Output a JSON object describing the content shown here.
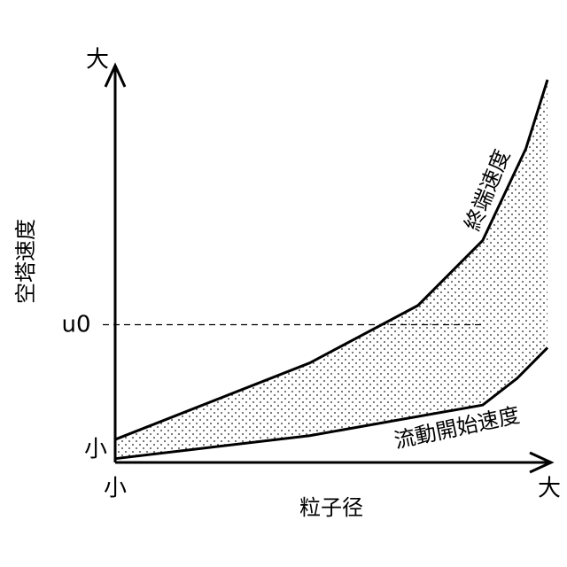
{
  "chart_data": {
    "type": "area",
    "xlabel": "粒子径",
    "ylabel": "空塔速度",
    "x_min_label": "小",
    "x_max_label": "大",
    "y_min_label": "小",
    "y_max_label": "大",
    "reference_line": {
      "label": "u0",
      "value": 0.36,
      "style": "dashed"
    },
    "xlim": [
      0,
      1
    ],
    "ylim": [
      0,
      1
    ],
    "grid": false,
    "legend": "none",
    "fill_pattern": "dotted",
    "series": [
      {
        "name": "終端速度",
        "x": [
          0.0,
          0.45,
          0.7,
          0.85,
          0.95,
          1.0
        ],
        "y": [
          0.06,
          0.26,
          0.41,
          0.58,
          0.82,
          1.0
        ]
      },
      {
        "name": "流動開始速度",
        "x": [
          0.0,
          0.45,
          0.85,
          0.93,
          1.0
        ],
        "y": [
          0.01,
          0.07,
          0.15,
          0.22,
          0.3
        ]
      }
    ],
    "colors": {
      "line": "#000000",
      "dot": "#555555",
      "dash": "#000000"
    }
  }
}
